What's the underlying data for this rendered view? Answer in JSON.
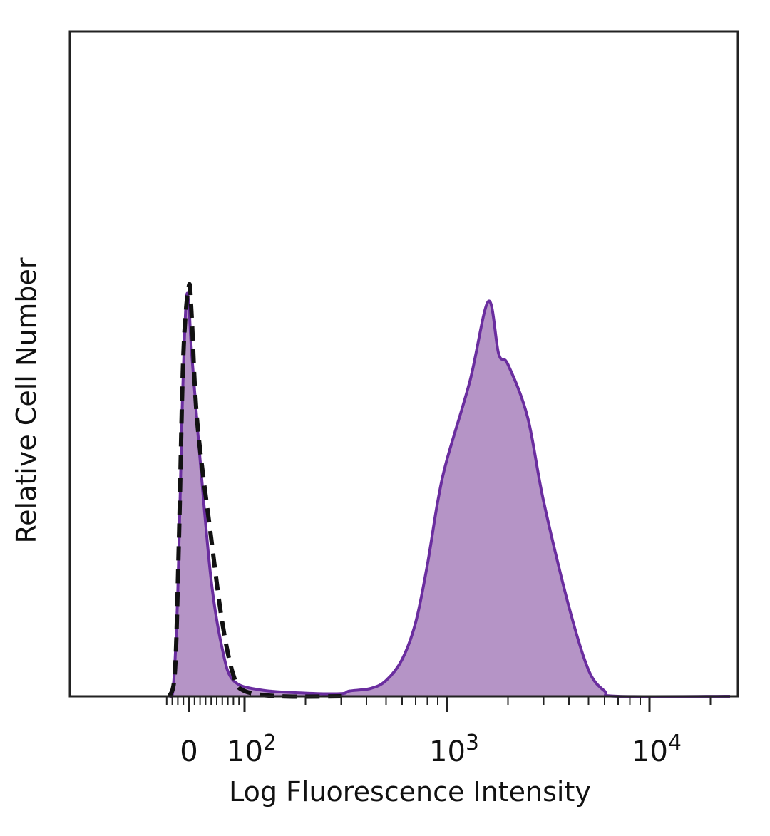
{
  "chart_data": {
    "type": "area",
    "title": "",
    "xlabel": "Log Fluorescence Intensity",
    "ylabel": "Relative Cell Number",
    "x_scale": "biexponential",
    "xlim": [
      -40,
      30000
    ],
    "ylim": [
      0,
      1
    ],
    "x_ticks": [
      {
        "value": 0,
        "label": "0"
      },
      {
        "value": 100,
        "base": "10",
        "exp": "2"
      },
      {
        "value": 1000,
        "base": "10",
        "exp": "3"
      },
      {
        "value": 10000,
        "base": "10",
        "exp": "4"
      }
    ],
    "grid": false,
    "legend": "none",
    "colors": {
      "fill": "#b594c6",
      "stroke": "#6a2d9f",
      "dashed": "#111111"
    },
    "series": [
      {
        "style": "filled-purple",
        "points": [
          [
            -35,
            0
          ],
          [
            -28,
            0.02
          ],
          [
            -20,
            0.2
          ],
          [
            -12,
            0.55
          ],
          [
            -5,
            0.75
          ],
          [
            0,
            0.74
          ],
          [
            5,
            0.65
          ],
          [
            20,
            0.45
          ],
          [
            40,
            0.22
          ],
          [
            60,
            0.09
          ],
          [
            80,
            0.03
          ],
          [
            120,
            0.012
          ],
          [
            200,
            0.006
          ],
          [
            300,
            0.005
          ],
          [
            330,
            0.01
          ],
          [
            420,
            0.015
          ],
          [
            500,
            0.03
          ],
          [
            600,
            0.07
          ],
          [
            700,
            0.14
          ],
          [
            800,
            0.25
          ],
          [
            900,
            0.37
          ],
          [
            1000,
            0.45
          ],
          [
            1300,
            0.6
          ],
          [
            1600,
            0.75
          ],
          [
            1800,
            0.65
          ],
          [
            2000,
            0.63
          ],
          [
            2500,
            0.53
          ],
          [
            3000,
            0.37
          ],
          [
            4000,
            0.17
          ],
          [
            5000,
            0.05
          ],
          [
            6000,
            0.01
          ],
          [
            7000,
            0
          ],
          [
            25000,
            0
          ]
        ]
      },
      {
        "style": "dashed-black",
        "points": [
          [
            -35,
            0
          ],
          [
            -25,
            0.05
          ],
          [
            -18,
            0.3
          ],
          [
            -10,
            0.65
          ],
          [
            0,
            0.78
          ],
          [
            5,
            0.72
          ],
          [
            15,
            0.52
          ],
          [
            40,
            0.3
          ],
          [
            60,
            0.14
          ],
          [
            80,
            0.04
          ],
          [
            100,
            0.01
          ],
          [
            150,
            0
          ],
          [
            300,
            0
          ]
        ]
      }
    ]
  }
}
